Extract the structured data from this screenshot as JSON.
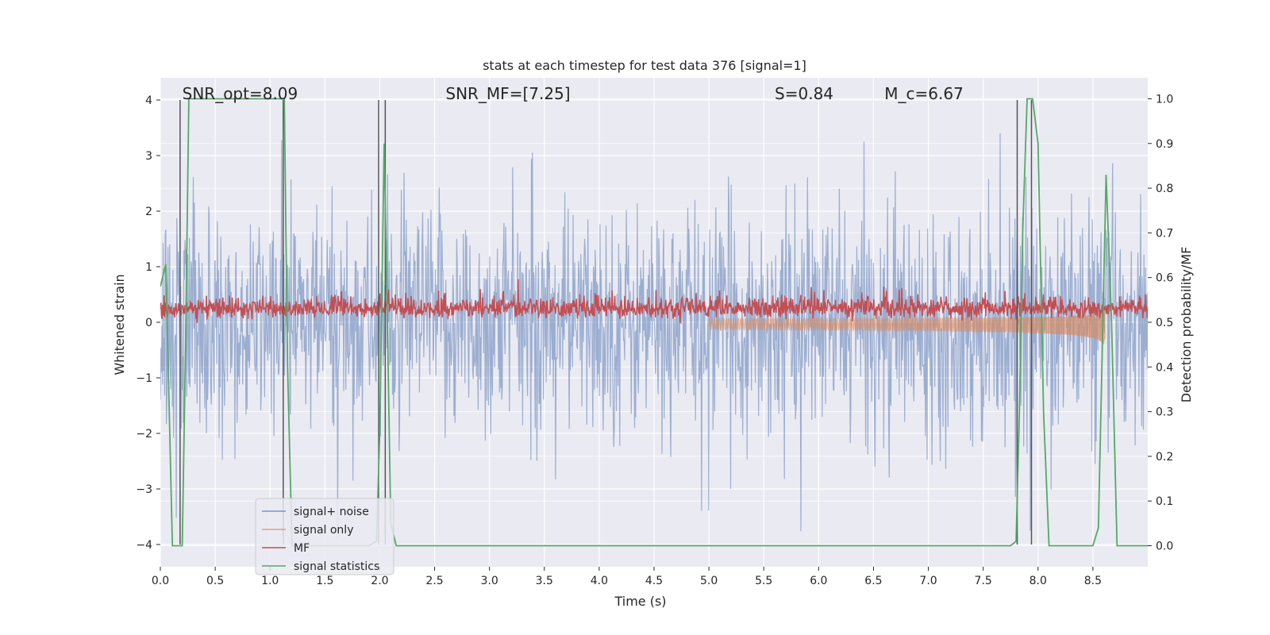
{
  "chart_data": {
    "type": "line",
    "title": "stats at each timestep for test data 376 [signal=1]",
    "xlabel": "Time (s)",
    "ylabel": "Whitened strain",
    "y2label": "Detection probability/MF",
    "xlim": [
      0.0,
      9.0
    ],
    "ylim": [
      -4.4,
      4.4
    ],
    "y2lim": [
      -0.047,
      1.047
    ],
    "xticks": [
      0.0,
      0.5,
      1.0,
      1.5,
      2.0,
      2.5,
      3.0,
      3.5,
      4.0,
      4.5,
      5.0,
      5.5,
      6.0,
      6.5,
      7.0,
      7.5,
      8.0,
      8.5
    ],
    "xtick_labels": [
      "0.0",
      "0.5",
      "1.0",
      "1.5",
      "2.0",
      "2.5",
      "3.0",
      "3.5",
      "4.0",
      "4.5",
      "5.0",
      "5.5",
      "6.0",
      "6.5",
      "7.0",
      "7.5",
      "8.0",
      "8.5"
    ],
    "yticks": [
      -4,
      -3,
      -2,
      -1,
      0,
      1,
      2,
      3,
      4
    ],
    "ytick_labels": [
      "−4",
      "−3",
      "−2",
      "−1",
      "0",
      "1",
      "2",
      "3",
      "4"
    ],
    "y2ticks": [
      0.0,
      0.1,
      0.2,
      0.3,
      0.4,
      0.5,
      0.6,
      0.7,
      0.8,
      0.9,
      1.0
    ],
    "y2tick_labels": [
      "0.0",
      "0.1",
      "0.2",
      "0.3",
      "0.4",
      "0.5",
      "0.6",
      "0.7",
      "0.8",
      "0.9",
      "1.0"
    ],
    "grid": true,
    "legend_position": "lower-left",
    "annotations": [
      {
        "text": "SNR_opt=8.09",
        "x": 0.2,
        "y": 4.1
      },
      {
        "text": "SNR_MF=[7.25]",
        "x": 2.6,
        "y": 4.1
      },
      {
        "text": "S=0.84",
        "x": 5.6,
        "y": 4.1
      },
      {
        "text": "M_c=6.67",
        "x": 6.6,
        "y": 4.1
      }
    ],
    "vertical_lines_x": [
      0.18,
      1.12,
      1.99,
      2.05,
      7.81,
      7.94
    ],
    "series": [
      {
        "name": "signal+ noise",
        "color": "#4c72b0",
        "axis": "left",
        "description": "dense whitened strain noise, roughly between -2.5 and 2.5 with peaks near ±4",
        "envelope_points": 900
      },
      {
        "name": "signal only",
        "color": "#dd8452",
        "axis": "left",
        "description": "chirp signal growing toward merger at ~8.6 s"
      },
      {
        "name": "MF",
        "color": "#c44e52",
        "axis": "right",
        "description": "matched filter output, about 0.5-0.55 on right axis"
      },
      {
        "name": "signal statistics",
        "color": "#55a868",
        "axis": "right",
        "x": [
          0.0,
          0.05,
          0.11,
          0.17,
          0.2,
          0.23,
          0.26,
          1.1,
          1.13,
          1.16,
          1.2,
          1.9,
          1.97,
          2.0,
          2.04,
          2.07,
          2.1,
          2.15,
          2.2,
          7.75,
          7.8,
          7.83,
          7.86,
          7.9,
          7.95,
          8.0,
          8.05,
          8.1,
          8.5,
          8.55,
          8.62,
          8.67,
          8.72,
          8.8,
          9.0
        ],
        "values": [
          0.58,
          0.63,
          0.0,
          0.0,
          0.0,
          0.45,
          1.0,
          1.0,
          1.0,
          0.4,
          0.0,
          0.0,
          0.01,
          0.25,
          0.9,
          0.5,
          0.05,
          0.0,
          0.0,
          0.0,
          0.01,
          0.3,
          0.7,
          1.0,
          1.0,
          0.9,
          0.3,
          0.0,
          0.0,
          0.04,
          0.83,
          0.5,
          0.0,
          0.0,
          0.0
        ]
      }
    ],
    "legend_labels": [
      "signal+ noise",
      "signal only",
      "MF",
      "signal statistics"
    ]
  }
}
